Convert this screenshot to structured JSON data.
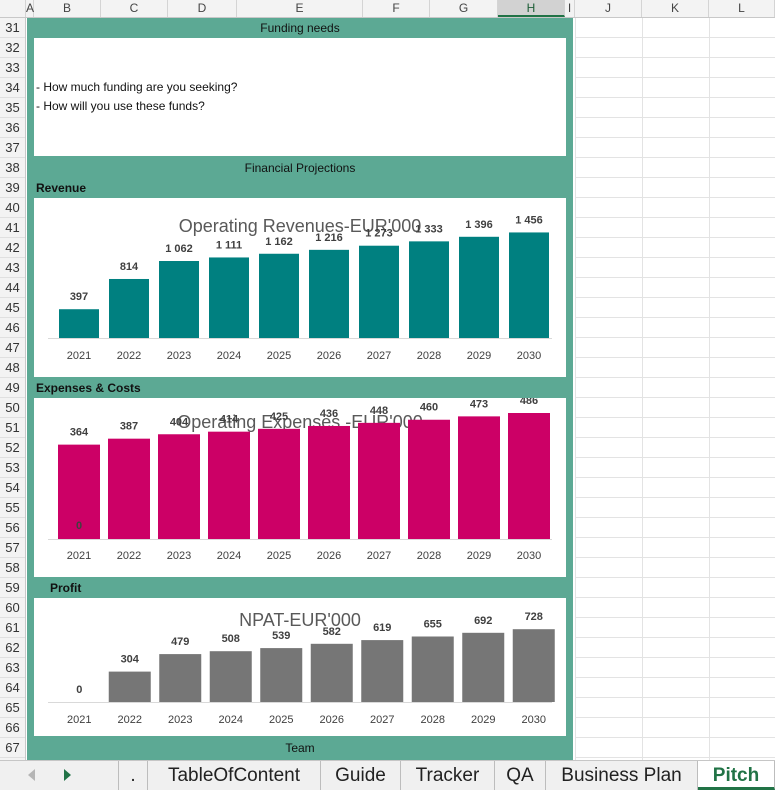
{
  "columns": [
    "A",
    "B",
    "C",
    "D",
    "E",
    "F",
    "G",
    "H",
    "I",
    "J",
    "K",
    "L"
  ],
  "selected_column": "H",
  "rows": [
    "31",
    "32",
    "33",
    "34",
    "35",
    "36",
    "37",
    "38",
    "39",
    "40",
    "41",
    "42",
    "43",
    "44",
    "45",
    "46",
    "47",
    "48",
    "49",
    "50",
    "51",
    "52",
    "53",
    "54",
    "55",
    "56",
    "57",
    "58",
    "59",
    "60",
    "61",
    "62",
    "63",
    "64",
    "65",
    "66",
    "67"
  ],
  "funding": {
    "title": "Funding needs",
    "line1": "- How much funding are you seeking?",
    "line2": "- How will you use these funds?"
  },
  "projections_title": "Financial Projections",
  "sections": {
    "revenue": "Revenue",
    "expenses": "Expenses & Costs",
    "profit": "Profit",
    "team": "Team"
  },
  "chart_data": [
    {
      "type": "bar",
      "title": "Operating Revenues-EUR'000",
      "categories": [
        "2021",
        "2022",
        "2023",
        "2024",
        "2025",
        "2026",
        "2027",
        "2028",
        "2029",
        "2030"
      ],
      "values": [
        397,
        814,
        1062,
        1111,
        1162,
        1216,
        1273,
        1333,
        1396,
        1456
      ],
      "labels": [
        "397",
        "814",
        "1 062",
        "1 111",
        "1 162",
        "1 216",
        "1 273",
        "1 333",
        "1 396",
        "1 456"
      ],
      "color": "#008080",
      "ylim": [
        0,
        1600
      ]
    },
    {
      "type": "bar",
      "title": "Operating Expenses -EUR'000",
      "categories": [
        "2021",
        "2022",
        "2023",
        "2024",
        "2025",
        "2026",
        "2027",
        "2028",
        "2029",
        "2030"
      ],
      "values": [
        364,
        387,
        404,
        414,
        425,
        436,
        448,
        460,
        473,
        486
      ],
      "labels": [
        "364",
        "387",
        "404",
        "414",
        "425",
        "436",
        "448",
        "460",
        "473",
        "486"
      ],
      "extra_label": "0",
      "color": "#cc0066",
      "ylim": [
        0,
        540
      ]
    },
    {
      "type": "bar",
      "title": "NPAT-EUR'000",
      "categories": [
        "2021",
        "2022",
        "2023",
        "2024",
        "2025",
        "2026",
        "2027",
        "2028",
        "2029",
        "2030"
      ],
      "values": [
        0,
        304,
        479,
        508,
        539,
        582,
        619,
        655,
        692,
        728
      ],
      "labels": [
        "0",
        "304",
        "479",
        "508",
        "539",
        "582",
        "619",
        "655",
        "692",
        "728"
      ],
      "color": "#767676",
      "ylim": [
        0,
        1200
      ]
    }
  ],
  "tabs": [
    {
      "label": ".",
      "active": false
    },
    {
      "label": "TableOfContent",
      "active": false
    },
    {
      "label": "Guide",
      "active": false
    },
    {
      "label": "Tracker",
      "active": false
    },
    {
      "label": "QA",
      "active": false
    },
    {
      "label": "Business Plan",
      "active": false
    },
    {
      "label": "Pitch",
      "active": true
    }
  ]
}
